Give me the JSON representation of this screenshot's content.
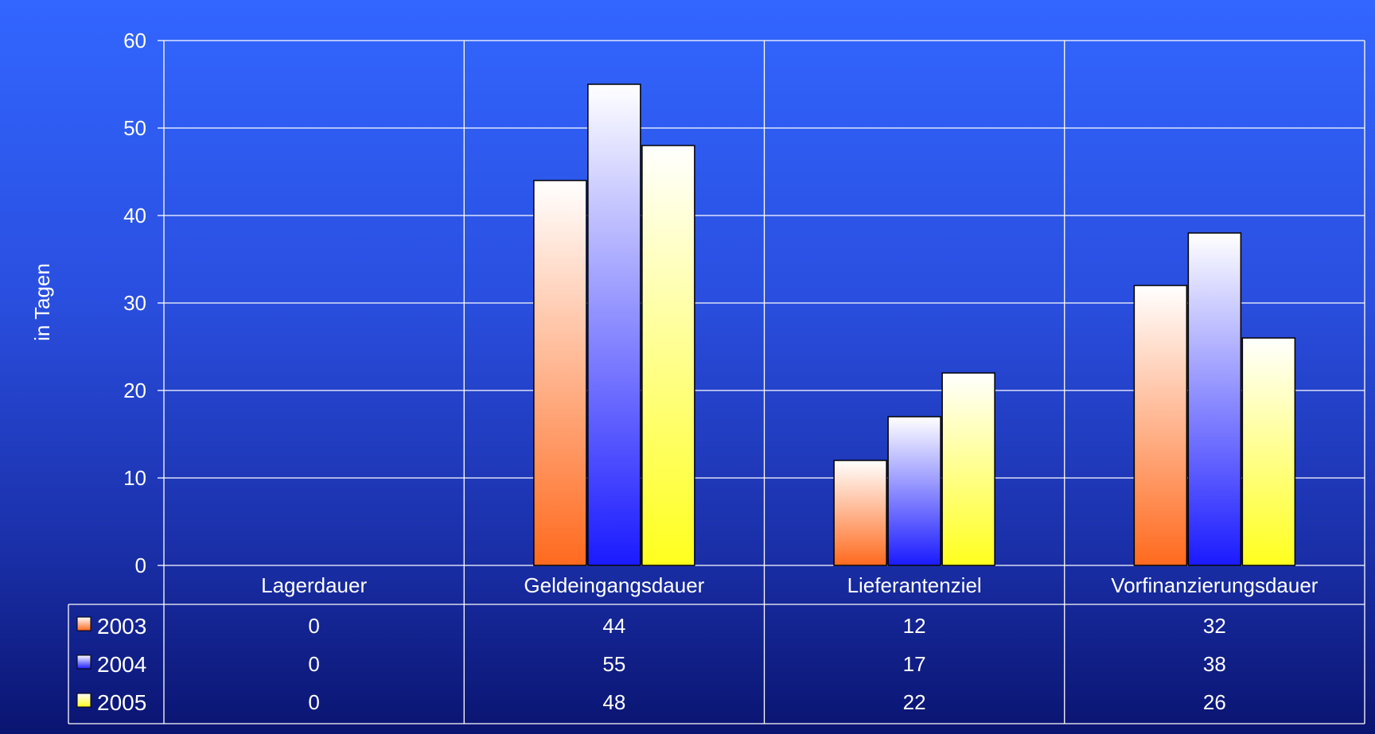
{
  "chart_data": {
    "type": "bar",
    "ylabel": "in Tagen",
    "ylim": [
      0,
      60
    ],
    "yticks": [
      "0",
      "10",
      "20",
      "30",
      "40",
      "50",
      "60"
    ],
    "grid": true,
    "categories": [
      "Lagerdauer",
      "Geldeingangsdauer",
      "Lieferantenziel",
      "Vorfinanzierungsdauer"
    ],
    "series": [
      {
        "name": "2003",
        "values": [
          0,
          44,
          12,
          32
        ],
        "color": "#ff6a1e",
        "table": [
          "0",
          "44",
          "12",
          "32"
        ]
      },
      {
        "name": "2004",
        "values": [
          0,
          55,
          17,
          38
        ],
        "color": "#2222ff",
        "table": [
          "0",
          "55",
          "17",
          "38"
        ]
      },
      {
        "name": "2005",
        "values": [
          0,
          48,
          22,
          26
        ],
        "color": "#ffff1e",
        "table": [
          "0",
          "48",
          "22",
          "26"
        ]
      }
    ],
    "legend": "data-table-left"
  }
}
